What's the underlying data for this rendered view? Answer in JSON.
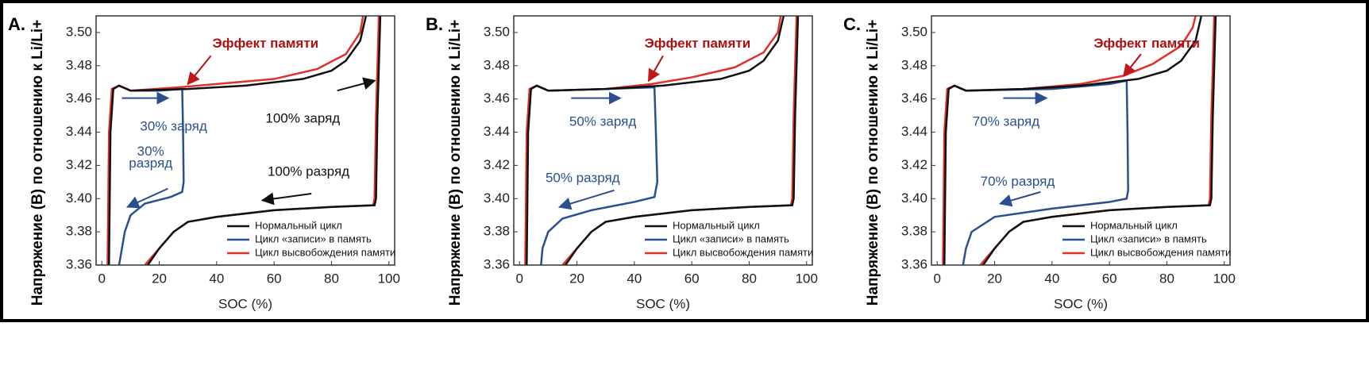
{
  "chart_data": [
    {
      "type": "line",
      "label": "A.",
      "ylabel": "Напряжение (В) по отношению к Li/Li+",
      "xlabel": "SOC (%)",
      "xlim": [
        -2,
        102
      ],
      "ylim": [
        3.36,
        3.51
      ],
      "xticks": [
        0,
        20,
        40,
        60,
        80,
        100
      ],
      "yticks": [
        3.36,
        3.38,
        {
          "value": 3.4,
          "label": "3.40"
        },
        3.42,
        3.44,
        3.46,
        3.48,
        {
          "value": 3.5,
          "label": "3.50"
        }
      ],
      "grid": false,
      "annotations": [
        "Эффект памяти",
        "30% заряд",
        "30%",
        "разряд",
        "100% заряд",
        "100% разряд"
      ],
      "series": [
        {
          "name": "Нормальный цикл",
          "color": "#111111",
          "x": [
            2.5,
            3,
            4,
            6,
            10,
            30,
            50,
            70,
            80,
            85,
            90,
            92,
            null,
            97,
            96,
            95.5,
            95,
            80,
            60,
            40,
            30,
            25,
            20,
            16
          ],
          "values": [
            3.36,
            3.44,
            3.466,
            3.468,
            3.465,
            3.466,
            3.468,
            3.472,
            3.477,
            3.483,
            3.495,
            3.51,
            null,
            3.51,
            3.45,
            3.4,
            3.396,
            3.395,
            3.393,
            3.389,
            3.386,
            3.38,
            3.37,
            3.36
          ]
        },
        {
          "name": "Цикл «записи» в память",
          "color": "#2a4f8f",
          "x": [
            10,
            20,
            28,
            28.3,
            28.5,
            28,
            24,
            15,
            10,
            8,
            7,
            6
          ],
          "values": [
            3.465,
            3.465,
            3.466,
            3.44,
            3.41,
            3.404,
            3.401,
            3.397,
            3.39,
            3.38,
            3.37,
            3.36
          ]
        },
        {
          "name": "Цикл высвобождения памяти",
          "color": "#e0302a",
          "x": [
            2,
            2.5,
            3.5,
            6,
            10,
            27,
            40,
            60,
            75,
            85,
            90,
            91,
            null,
            96.5,
            95.5,
            95,
            94.5,
            80,
            60,
            40,
            30,
            25,
            20,
            15
          ],
          "values": [
            3.36,
            3.44,
            3.466,
            3.468,
            3.465,
            3.467,
            3.469,
            3.472,
            3.478,
            3.487,
            3.5,
            3.51,
            null,
            3.51,
            3.45,
            3.4,
            3.396,
            3.395,
            3.393,
            3.389,
            3.386,
            3.38,
            3.37,
            3.36
          ]
        }
      ]
    },
    {
      "type": "line",
      "label": "B.",
      "ylabel": "Напряжение (В) по отношению к Li/Li+",
      "xlabel": "SOC (%)",
      "xlim": [
        -2,
        102
      ],
      "ylim": [
        3.36,
        3.51
      ],
      "xticks": [
        0,
        20,
        40,
        60,
        80,
        100
      ],
      "yticks": [
        3.36,
        3.38,
        {
          "value": 3.4,
          "label": "3.40"
        },
        3.42,
        3.44,
        3.46,
        3.48,
        {
          "value": 3.5,
          "label": "3.50"
        }
      ],
      "grid": false,
      "annotations": [
        "Эффект памяти",
        "50% заряд",
        "50% разряд"
      ],
      "series": [
        {
          "name": "Нормальный цикл",
          "color": "#111111",
          "x": [
            2.5,
            3,
            4,
            6,
            10,
            30,
            50,
            70,
            80,
            85,
            90,
            92,
            null,
            97,
            96,
            95.5,
            95,
            80,
            60,
            40,
            30,
            25,
            20,
            16
          ],
          "values": [
            3.36,
            3.44,
            3.466,
            3.468,
            3.465,
            3.466,
            3.468,
            3.472,
            3.477,
            3.483,
            3.495,
            3.51,
            null,
            3.51,
            3.45,
            3.4,
            3.396,
            3.395,
            3.393,
            3.389,
            3.386,
            3.38,
            3.37,
            3.36
          ]
        },
        {
          "name": "Цикл «записи» в память",
          "color": "#2a4f8f",
          "x": [
            10,
            30,
            47,
            47.5,
            48,
            47,
            40,
            25,
            15,
            10,
            8,
            7.5
          ],
          "values": [
            3.465,
            3.466,
            3.467,
            3.44,
            3.41,
            3.401,
            3.398,
            3.393,
            3.388,
            3.38,
            3.37,
            3.36
          ]
        },
        {
          "name": "Цикл высвобождения памяти",
          "color": "#e0302a",
          "x": [
            2,
            2.5,
            3.5,
            6,
            10,
            30,
            46,
            60,
            75,
            85,
            90,
            91,
            null,
            96.5,
            95.5,
            95,
            94.5,
            80,
            60,
            40,
            30,
            25,
            20,
            15
          ],
          "values": [
            3.36,
            3.44,
            3.466,
            3.468,
            3.465,
            3.466,
            3.469,
            3.473,
            3.479,
            3.488,
            3.5,
            3.51,
            null,
            3.51,
            3.45,
            3.4,
            3.396,
            3.395,
            3.393,
            3.389,
            3.386,
            3.38,
            3.37,
            3.36
          ]
        }
      ]
    },
    {
      "type": "line",
      "label": "C.",
      "ylabel": "Напряжение (В) по отношению к Li/Li+",
      "xlabel": "SOC (%)",
      "xlim": [
        -2,
        102
      ],
      "ylim": [
        3.36,
        3.51
      ],
      "xticks": [
        0,
        20,
        40,
        60,
        80,
        100
      ],
      "yticks": [
        3.36,
        3.38,
        {
          "value": 3.4,
          "label": "3.40"
        },
        3.42,
        3.44,
        3.46,
        3.48,
        {
          "value": 3.5,
          "label": "3.50"
        }
      ],
      "grid": false,
      "annotations": [
        "Эффект памяти",
        "70% заряд",
        "70% разряд"
      ],
      "series": [
        {
          "name": "Нормальный цикл",
          "color": "#111111",
          "x": [
            2.5,
            3,
            4,
            6,
            10,
            30,
            50,
            70,
            80,
            85,
            90,
            92,
            null,
            97,
            96,
            95.5,
            95,
            80,
            60,
            40,
            30,
            25,
            20,
            16
          ],
          "values": [
            3.36,
            3.44,
            3.466,
            3.468,
            3.465,
            3.466,
            3.468,
            3.472,
            3.477,
            3.483,
            3.495,
            3.51,
            null,
            3.51,
            3.45,
            3.4,
            3.396,
            3.395,
            3.393,
            3.389,
            3.386,
            3.38,
            3.37,
            3.36
          ]
        },
        {
          "name": "Цикл «записи» в память",
          "color": "#2a4f8f",
          "x": [
            10,
            40,
            60,
            66,
            66.3,
            66.5,
            66,
            60,
            40,
            20,
            12,
            10,
            9
          ],
          "values": [
            3.465,
            3.466,
            3.469,
            3.471,
            3.44,
            3.405,
            3.4,
            3.398,
            3.394,
            3.389,
            3.38,
            3.37,
            3.36
          ]
        },
        {
          "name": "Цикл высвобождения памяти",
          "color": "#e0302a",
          "x": [
            2,
            2.5,
            3.5,
            6,
            10,
            30,
            50,
            65,
            75,
            85,
            89,
            90,
            null,
            96.5,
            95.5,
            95,
            94.5,
            80,
            60,
            40,
            30,
            25,
            20,
            15
          ],
          "values": [
            3.36,
            3.44,
            3.466,
            3.468,
            3.465,
            3.466,
            3.469,
            3.474,
            3.481,
            3.492,
            3.503,
            3.51,
            null,
            3.51,
            3.45,
            3.4,
            3.396,
            3.395,
            3.393,
            3.389,
            3.386,
            3.38,
            3.37,
            3.36
          ]
        }
      ]
    }
  ]
}
